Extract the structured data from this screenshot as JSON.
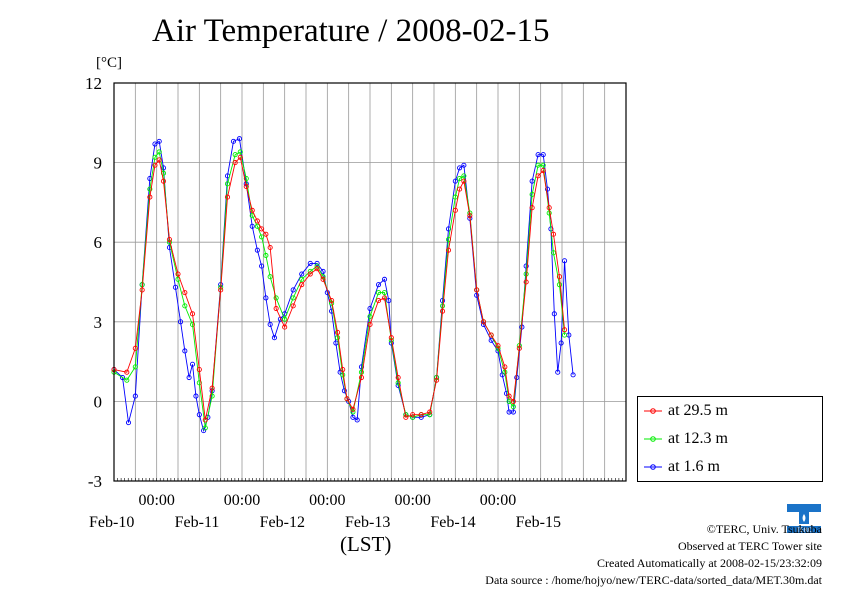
{
  "title": "Air Temperature / 2008-02-15",
  "unit_label": "[°C]",
  "credits": {
    "copyright": "©TERC, Univ. Tsukuba",
    "observed": "Observed at TERC Tower site",
    "created": "Created Automatically at 2008-02-15/23:32:09",
    "source": "Data source : /home/hojyo/new/TERC-data/sorted_data/MET.30m.dat"
  },
  "logo_text": "TERC",
  "colors": {
    "s1": "#ff0000",
    "s2": "#00ee00",
    "s3": "#0000ff",
    "grid": "#999999"
  },
  "chart_data": {
    "type": "line",
    "title": "Air Temperature / 2008-02-15",
    "xlabel": "(LST)",
    "ylabel": "[°C]",
    "ylim": [
      -3,
      12
    ],
    "yticks": [
      -3,
      0,
      3,
      6,
      9,
      12
    ],
    "xlim": [
      0,
      6
    ],
    "x_unit": "days since Feb-09 12:00 LST",
    "x_tick_top": [
      "00:00",
      "00:00",
      "00:00",
      "00:00",
      "00:00"
    ],
    "x_tick_dates": [
      "Feb-10",
      "Feb-11",
      "Feb-12",
      "Feb-13",
      "Feb-14",
      "Feb-15"
    ],
    "grid": true,
    "legend_position": "bottom-right",
    "series": [
      {
        "name": "at 29.5 m",
        "points": [
          [
            0,
            1.2
          ],
          [
            0.15,
            1.1
          ],
          [
            0.25,
            2.0
          ],
          [
            0.33,
            4.2
          ],
          [
            0.42,
            7.7
          ],
          [
            0.48,
            8.9
          ],
          [
            0.53,
            9.1
          ],
          [
            0.58,
            8.3
          ],
          [
            0.65,
            6.1
          ],
          [
            0.75,
            4.8
          ],
          [
            0.83,
            4.1
          ],
          [
            0.92,
            3.3
          ],
          [
            1.0,
            1.2
          ],
          [
            1.07,
            -0.7
          ],
          [
            1.15,
            0.5
          ],
          [
            1.25,
            4.2
          ],
          [
            1.33,
            7.7
          ],
          [
            1.42,
            9.0
          ],
          [
            1.48,
            9.2
          ],
          [
            1.55,
            8.1
          ],
          [
            1.62,
            7.2
          ],
          [
            1.68,
            6.8
          ],
          [
            1.73,
            6.5
          ],
          [
            1.78,
            6.3
          ],
          [
            1.83,
            5.8
          ],
          [
            1.9,
            3.5
          ],
          [
            2.0,
            2.8
          ],
          [
            2.1,
            3.6
          ],
          [
            2.2,
            4.4
          ],
          [
            2.3,
            4.8
          ],
          [
            2.38,
            5.0
          ],
          [
            2.45,
            4.6
          ],
          [
            2.55,
            3.8
          ],
          [
            2.62,
            2.6
          ],
          [
            2.68,
            1.2
          ],
          [
            2.73,
            0.1
          ],
          [
            2.8,
            -0.3
          ],
          [
            2.9,
            0.9
          ],
          [
            3.0,
            2.9
          ],
          [
            3.1,
            3.8
          ],
          [
            3.17,
            3.9
          ],
          [
            3.25,
            2.4
          ],
          [
            3.33,
            0.9
          ],
          [
            3.42,
            -0.6
          ],
          [
            3.5,
            -0.5
          ],
          [
            3.6,
            -0.5
          ],
          [
            3.7,
            -0.4
          ],
          [
            3.78,
            0.8
          ],
          [
            3.85,
            3.4
          ],
          [
            3.92,
            5.7
          ],
          [
            4.0,
            7.2
          ],
          [
            4.05,
            8.0
          ],
          [
            4.1,
            8.3
          ],
          [
            4.17,
            7.0
          ],
          [
            4.25,
            4.2
          ],
          [
            4.33,
            3.0
          ],
          [
            4.42,
            2.5
          ],
          [
            4.5,
            2.1
          ],
          [
            4.58,
            1.3
          ],
          [
            4.63,
            0.2
          ],
          [
            4.68,
            0.0
          ],
          [
            4.75,
            2.0
          ],
          [
            4.83,
            4.5
          ],
          [
            4.9,
            7.3
          ],
          [
            4.97,
            8.5
          ],
          [
            5.03,
            8.7
          ],
          [
            5.1,
            7.3
          ],
          [
            5.15,
            6.3
          ],
          [
            5.22,
            4.7
          ],
          [
            5.28,
            2.7
          ]
        ]
      },
      {
        "name": "at 12.3 m",
        "points": [
          [
            0,
            1.1
          ],
          [
            0.15,
            0.8
          ],
          [
            0.25,
            1.3
          ],
          [
            0.33,
            4.4
          ],
          [
            0.42,
            8.0
          ],
          [
            0.48,
            9.2
          ],
          [
            0.53,
            9.4
          ],
          [
            0.58,
            8.6
          ],
          [
            0.65,
            6.0
          ],
          [
            0.75,
            4.6
          ],
          [
            0.83,
            3.6
          ],
          [
            0.92,
            2.9
          ],
          [
            1.0,
            0.7
          ],
          [
            1.07,
            -1.0
          ],
          [
            1.15,
            0.2
          ],
          [
            1.25,
            4.3
          ],
          [
            1.33,
            8.2
          ],
          [
            1.42,
            9.3
          ],
          [
            1.48,
            9.4
          ],
          [
            1.55,
            8.4
          ],
          [
            1.62,
            7.0
          ],
          [
            1.68,
            6.6
          ],
          [
            1.73,
            6.2
          ],
          [
            1.78,
            5.5
          ],
          [
            1.83,
            4.7
          ],
          [
            1.9,
            3.9
          ],
          [
            2.0,
            3.1
          ],
          [
            2.1,
            3.9
          ],
          [
            2.2,
            4.6
          ],
          [
            2.3,
            4.9
          ],
          [
            2.38,
            5.1
          ],
          [
            2.45,
            4.7
          ],
          [
            2.55,
            3.7
          ],
          [
            2.62,
            2.4
          ],
          [
            2.68,
            1.0
          ],
          [
            2.73,
            0.1
          ],
          [
            2.8,
            -0.4
          ],
          [
            2.9,
            1.1
          ],
          [
            3.0,
            3.2
          ],
          [
            3.1,
            4.1
          ],
          [
            3.17,
            4.1
          ],
          [
            3.25,
            2.3
          ],
          [
            3.33,
            0.7
          ],
          [
            3.42,
            -0.5
          ],
          [
            3.5,
            -0.6
          ],
          [
            3.6,
            -0.5
          ],
          [
            3.7,
            -0.5
          ],
          [
            3.78,
            0.9
          ],
          [
            3.85,
            3.6
          ],
          [
            3.92,
            6.1
          ],
          [
            4.0,
            7.7
          ],
          [
            4.05,
            8.4
          ],
          [
            4.1,
            8.5
          ],
          [
            4.17,
            7.1
          ],
          [
            4.25,
            4.2
          ],
          [
            4.33,
            3.0
          ],
          [
            4.42,
            2.5
          ],
          [
            4.5,
            2.0
          ],
          [
            4.58,
            1.1
          ],
          [
            4.63,
            0.0
          ],
          [
            4.68,
            -0.2
          ],
          [
            4.75,
            2.1
          ],
          [
            4.83,
            4.8
          ],
          [
            4.9,
            7.8
          ],
          [
            4.97,
            8.9
          ],
          [
            5.03,
            8.9
          ],
          [
            5.1,
            7.1
          ],
          [
            5.15,
            5.6
          ],
          [
            5.22,
            4.4
          ],
          [
            5.28,
            2.5
          ]
        ]
      },
      {
        "name": "at 1.6 m",
        "points": [
          [
            0,
            1.2
          ],
          [
            0.1,
            0.9
          ],
          [
            0.17,
            -0.8
          ],
          [
            0.25,
            0.2
          ],
          [
            0.33,
            4.4
          ],
          [
            0.42,
            8.4
          ],
          [
            0.48,
            9.7
          ],
          [
            0.53,
            9.8
          ],
          [
            0.58,
            8.8
          ],
          [
            0.65,
            5.8
          ],
          [
            0.72,
            4.3
          ],
          [
            0.78,
            3.0
          ],
          [
            0.83,
            1.9
          ],
          [
            0.88,
            0.9
          ],
          [
            0.92,
            1.4
          ],
          [
            0.96,
            0.2
          ],
          [
            1.0,
            -0.5
          ],
          [
            1.05,
            -1.1
          ],
          [
            1.1,
            -0.6
          ],
          [
            1.15,
            0.4
          ],
          [
            1.25,
            4.4
          ],
          [
            1.33,
            8.5
          ],
          [
            1.4,
            9.8
          ],
          [
            1.47,
            9.9
          ],
          [
            1.55,
            8.2
          ],
          [
            1.62,
            6.6
          ],
          [
            1.68,
            5.7
          ],
          [
            1.73,
            5.1
          ],
          [
            1.78,
            3.9
          ],
          [
            1.83,
            2.9
          ],
          [
            1.88,
            2.4
          ],
          [
            1.95,
            3.1
          ],
          [
            2.0,
            3.3
          ],
          [
            2.1,
            4.2
          ],
          [
            2.2,
            4.8
          ],
          [
            2.3,
            5.2
          ],
          [
            2.38,
            5.2
          ],
          [
            2.45,
            4.9
          ],
          [
            2.5,
            4.1
          ],
          [
            2.55,
            3.4
          ],
          [
            2.6,
            2.2
          ],
          [
            2.65,
            1.1
          ],
          [
            2.7,
            0.4
          ],
          [
            2.75,
            0.0
          ],
          [
            2.8,
            -0.6
          ],
          [
            2.85,
            -0.7
          ],
          [
            2.9,
            1.3
          ],
          [
            3.0,
            3.5
          ],
          [
            3.1,
            4.4
          ],
          [
            3.17,
            4.6
          ],
          [
            3.22,
            3.8
          ],
          [
            3.25,
            2.2
          ],
          [
            3.33,
            0.6
          ],
          [
            3.42,
            -0.5
          ],
          [
            3.5,
            -0.6
          ],
          [
            3.6,
            -0.6
          ],
          [
            3.7,
            -0.5
          ],
          [
            3.78,
            0.9
          ],
          [
            3.85,
            3.8
          ],
          [
            3.92,
            6.5
          ],
          [
            4.0,
            8.3
          ],
          [
            4.05,
            8.8
          ],
          [
            4.1,
            8.9
          ],
          [
            4.17,
            6.9
          ],
          [
            4.25,
            4.0
          ],
          [
            4.33,
            2.9
          ],
          [
            4.42,
            2.3
          ],
          [
            4.5,
            1.9
          ],
          [
            4.55,
            1.0
          ],
          [
            4.6,
            0.3
          ],
          [
            4.63,
            -0.4
          ],
          [
            4.68,
            -0.4
          ],
          [
            4.72,
            0.9
          ],
          [
            4.78,
            2.8
          ],
          [
            4.83,
            5.1
          ],
          [
            4.9,
            8.3
          ],
          [
            4.97,
            9.3
          ],
          [
            5.03,
            9.3
          ],
          [
            5.08,
            8.0
          ],
          [
            5.12,
            6.5
          ],
          [
            5.16,
            3.3
          ],
          [
            5.2,
            1.1
          ],
          [
            5.24,
            2.2
          ],
          [
            5.28,
            5.3
          ],
          [
            5.33,
            2.5
          ],
          [
            5.38,
            1.0
          ]
        ]
      }
    ]
  }
}
